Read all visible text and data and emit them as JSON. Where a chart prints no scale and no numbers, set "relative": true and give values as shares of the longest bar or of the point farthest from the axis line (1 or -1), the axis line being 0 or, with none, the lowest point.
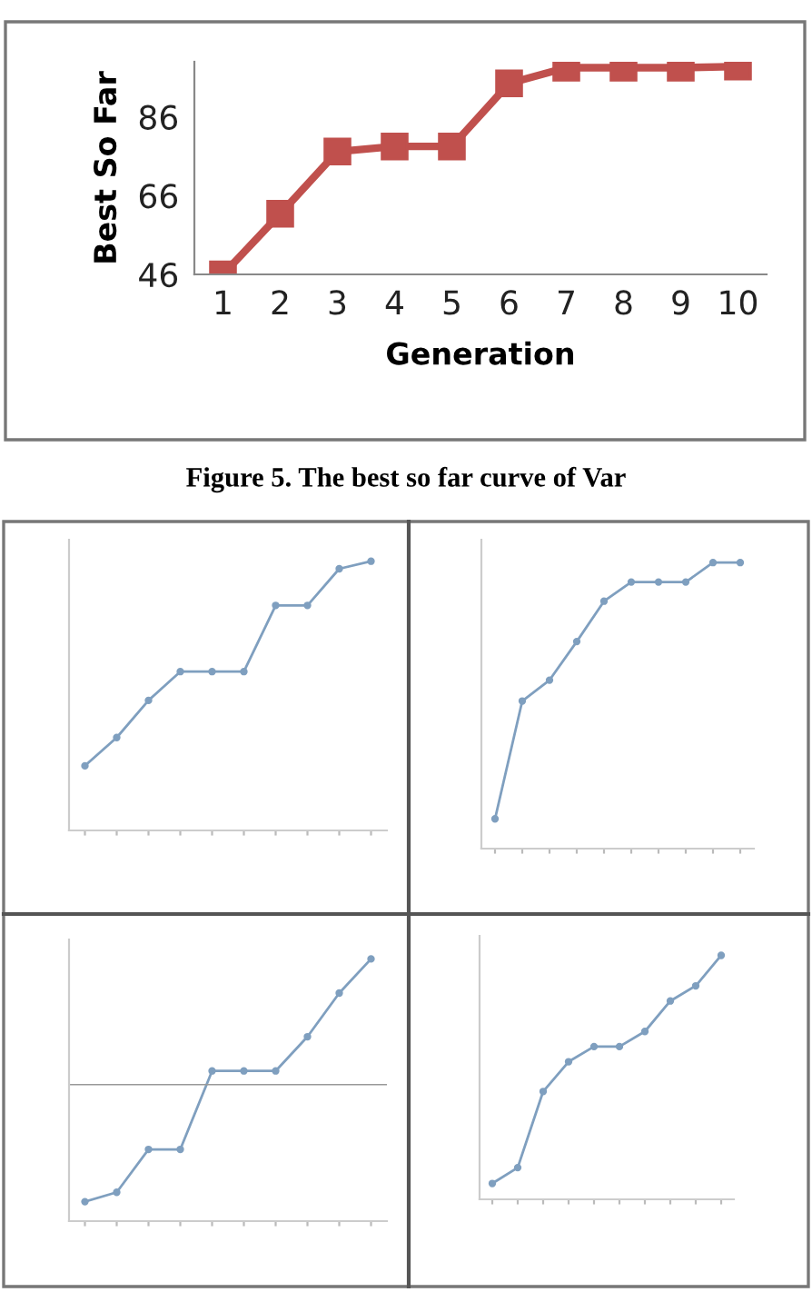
{
  "chart_data": [
    {
      "type": "line",
      "xlabel": "Generation",
      "ylabel": "Best So Far",
      "categories": [
        "1",
        "2",
        "3",
        "4",
        "5",
        "6",
        "7",
        "8",
        "9",
        "10"
      ],
      "ylim": [
        46,
        100
      ],
      "yticks": [
        46,
        66,
        86
      ],
      "marker": "square",
      "grid": false,
      "annotations": [
        "Figure 5. The best so far curve of Var"
      ],
      "series": [
        {
          "color": "#c0504d",
          "values": [
            46,
            61.4,
            77.2,
            78.5,
            78.5,
            94.5,
            98.5,
            98.5,
            98.5,
            98.8
          ]
        }
      ]
    },
    {
      "type": "line",
      "relative": true,
      "marker": "circle",
      "categories": [
        null,
        null,
        null,
        null,
        null,
        null,
        null,
        null,
        null,
        null
      ],
      "series": [
        {
          "color": "#7f9fbf",
          "values": [
            0.24,
            0.345,
            0.483,
            0.59,
            0.59,
            0.59,
            0.836,
            0.836,
            0.972,
            1
          ]
        }
      ]
    },
    {
      "type": "line",
      "relative": true,
      "marker": "circle",
      "categories": [
        null,
        null,
        null,
        null,
        null,
        null,
        null,
        null,
        null,
        null
      ],
      "series": [
        {
          "color": "#7f9fbf",
          "values": [
            0.104,
            0.516,
            0.589,
            0.724,
            0.865,
            0.932,
            0.932,
            0.932,
            1,
            1
          ]
        }
      ]
    },
    {
      "type": "line",
      "relative": true,
      "marker": "circle",
      "categories": [
        null,
        null,
        null,
        null,
        null,
        null,
        null,
        null,
        null,
        null
      ],
      "series": [
        {
          "color": "#7f9fbf",
          "values": [
            -0.931,
            -0.856,
            -0.515,
            -0.515,
            0.109,
            0.109,
            0.109,
            0.381,
            0.728,
            1
          ]
        }
      ]
    },
    {
      "type": "line",
      "relative": true,
      "marker": "circle",
      "categories": [
        null,
        null,
        null,
        null,
        null,
        null,
        null,
        null,
        null,
        null
      ],
      "series": [
        {
          "color": "#7f9fbf",
          "values": [
            0.065,
            0.13,
            0.442,
            0.564,
            0.626,
            0.626,
            0.688,
            0.813,
            0.875,
            1
          ]
        }
      ]
    }
  ]
}
